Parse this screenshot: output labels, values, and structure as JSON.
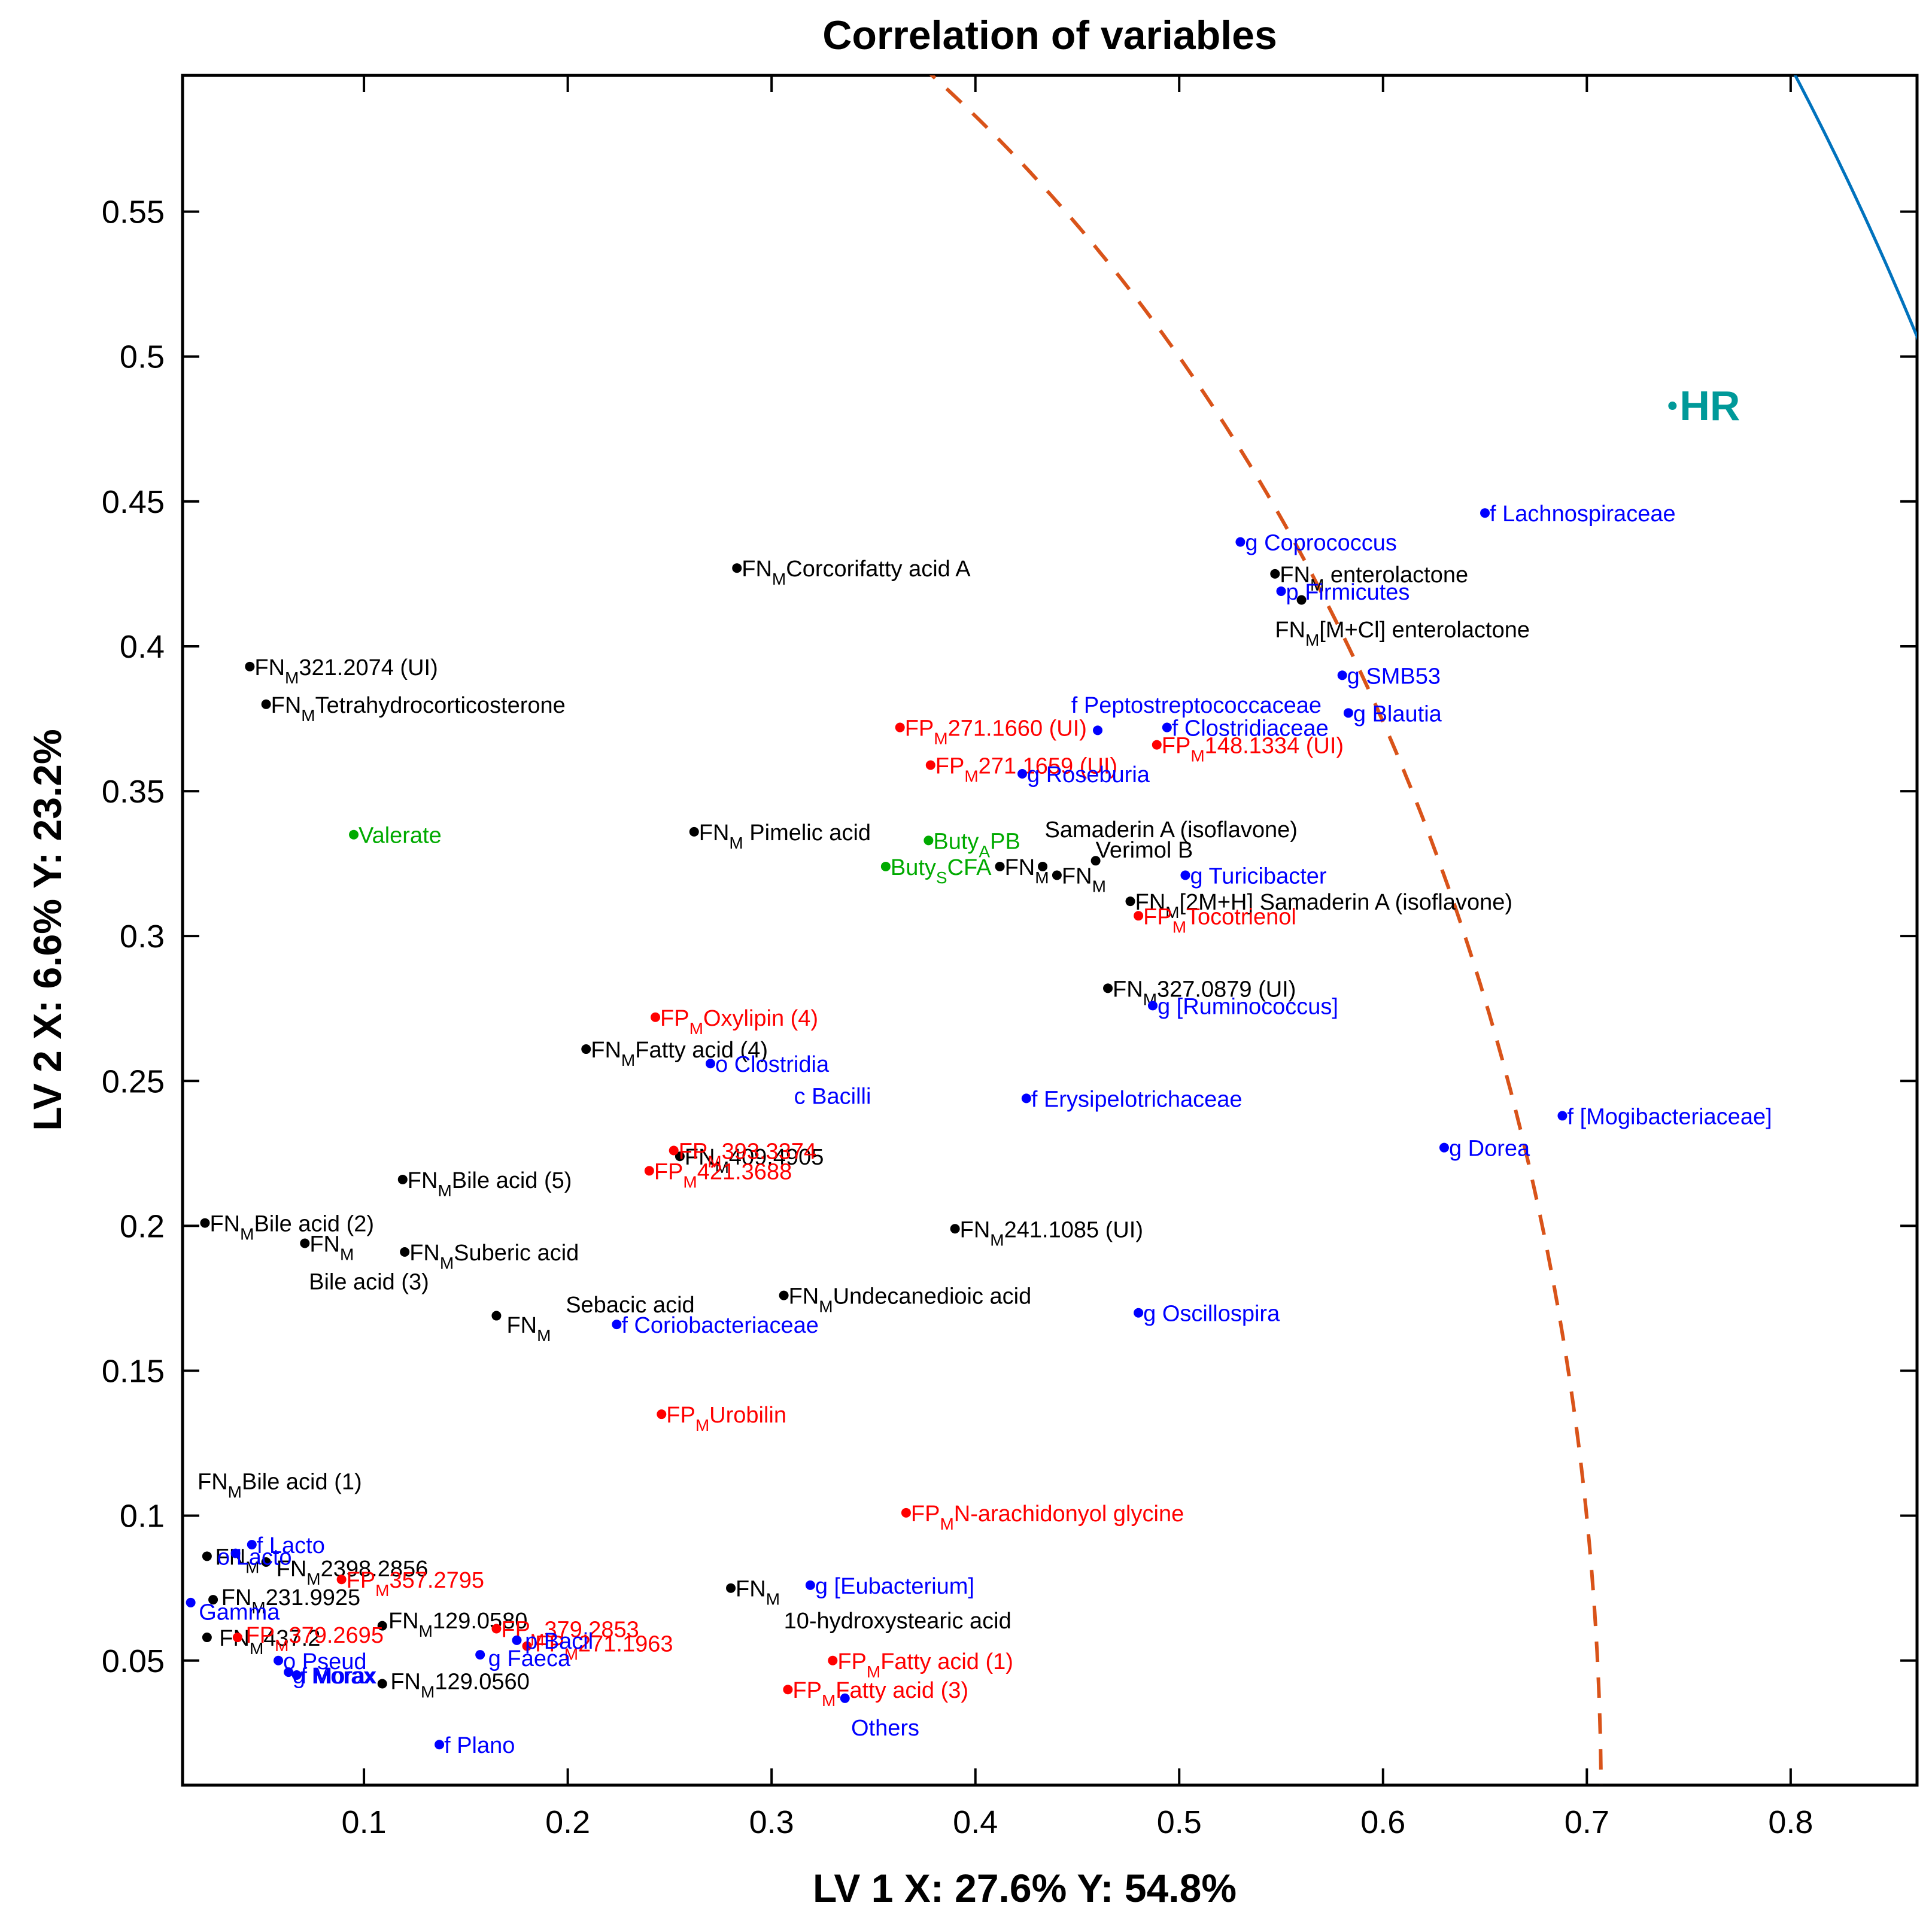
{
  "chart_data": {
    "type": "scatter",
    "title": "Correlation of variables",
    "xlabel": "LV 1 X: 27.6% Y: 54.8%",
    "ylabel": "LV 2 X: 6.6% Y: 23.2%",
    "xlim": [
      0.011,
      0.862
    ],
    "ylim": [
      0.007,
      0.597
    ],
    "xticks": [
      0.1,
      0.2,
      0.3,
      0.4,
      0.5,
      0.6,
      0.7,
      0.8
    ],
    "xtick_labels": [
      "0.1",
      "0.2",
      "0.3",
      "0.4",
      "0.5",
      "0.6",
      "0.7",
      "0.8"
    ],
    "yticks": [
      0.05,
      0.1,
      0.15,
      0.2,
      0.25,
      0.3,
      0.35,
      0.4,
      0.45,
      0.5,
      0.55
    ],
    "ytick_labels": [
      "0.05",
      "0.1",
      "0.15",
      "0.2",
      "0.25",
      "0.3",
      "0.35",
      "0.4",
      "0.45",
      "0.5",
      "0.55"
    ],
    "grid": false,
    "colors": {
      "FN": "#000000",
      "FP": "#ff0000",
      "taxa": "#0000ff",
      "scfa": "#00aa00",
      "HR": "#009999",
      "circle_inner": "#d95319",
      "circle_outer": "#0072bd"
    },
    "circles": [
      {
        "name": "inner",
        "radius": 0.707,
        "style": "dashed"
      },
      {
        "name": "outer",
        "radius": 1.0,
        "style": "solid"
      }
    ],
    "points": [
      {
        "x": 0.742,
        "y": 0.483,
        "group": "HR",
        "label": "HR"
      },
      {
        "x": 0.283,
        "y": 0.427,
        "group": "FN",
        "label": "FN",
        "sub": "M",
        "suffix": "Corcorifatty acid A"
      },
      {
        "x": 0.044,
        "y": 0.393,
        "group": "FN",
        "label": "FN",
        "sub": "M",
        "suffix": "321.2074 (UI)"
      },
      {
        "x": 0.052,
        "y": 0.38,
        "group": "FN",
        "label": "FN",
        "sub": "M",
        "suffix": "Tetrahydrocorticosterone"
      },
      {
        "x": 0.547,
        "y": 0.425,
        "group": "FN",
        "label": "FN",
        "sub": "M",
        "suffix": " enterolactone"
      },
      {
        "x": 0.56,
        "y": 0.416,
        "group": "FN",
        "label": "FN",
        "sub": "M",
        "suffix": "[M+Cl] enterolactone",
        "label_at": [
          0.547,
          0.406
        ]
      },
      {
        "x": 0.262,
        "y": 0.336,
        "group": "FN",
        "label": "FN",
        "sub": "M",
        "suffix": " Pimelic acid"
      },
      {
        "x": 0.44,
        "y": 0.321,
        "group": "FN",
        "label": "FN",
        "sub": "M",
        "suffix": ""
      },
      {
        "x": 0.433,
        "y": 0.324,
        "group": "FN",
        "label": "Samaderin A (isoflavone)",
        "label_at": [
          0.434,
          0.337
        ]
      },
      {
        "x": 0.412,
        "y": 0.324,
        "group": "FN",
        "label": "FN",
        "sub": "M",
        "suffix": ""
      },
      {
        "x": 0.459,
        "y": 0.326,
        "group": "FN",
        "label": "Verimol B",
        "label_at": [
          0.459,
          0.33
        ]
      },
      {
        "x": 0.476,
        "y": 0.312,
        "group": "FN",
        "label": "FN",
        "sub": "M",
        "suffix": "[2M+H] Samaderin A (isoflavone)"
      },
      {
        "x": 0.465,
        "y": 0.282,
        "group": "FN",
        "label": "FN",
        "sub": "M",
        "suffix": "327.0879 (UI)"
      },
      {
        "x": 0.209,
        "y": 0.261,
        "group": "FN",
        "label": "FN",
        "sub": "M",
        "suffix": "Fatty acid (4)"
      },
      {
        "x": 0.119,
        "y": 0.216,
        "group": "FN",
        "label": "FN",
        "sub": "M",
        "suffix": "Bile acid (5)"
      },
      {
        "x": 0.255,
        "y": 0.224,
        "group": "FN",
        "label": "FN",
        "sub": "M",
        "suffix": "409.4905"
      },
      {
        "x": 0.022,
        "y": 0.201,
        "group": "FN",
        "label": "FN",
        "sub": "M",
        "suffix": "Bile acid (2)"
      },
      {
        "x": 0.071,
        "y": 0.194,
        "group": "FN",
        "label": "FN",
        "sub": "M",
        "suffix": ""
      },
      {
        "x": 0.071,
        "y": 0.194,
        "group": "FN",
        "label": "Bile acid (3)",
        "label_at": [
          0.073,
          0.181
        ],
        "no_marker": true
      },
      {
        "x": 0.12,
        "y": 0.191,
        "group": "FN",
        "label": "FN",
        "sub": "M",
        "suffix": "Suberic acid"
      },
      {
        "x": 0.39,
        "y": 0.199,
        "group": "FN",
        "label": "FN",
        "sub": "M",
        "suffix": "241.1085 (UI)"
      },
      {
        "x": 0.306,
        "y": 0.176,
        "group": "FN",
        "label": "FN",
        "sub": "M",
        "suffix": "Undecanedioic acid"
      },
      {
        "x": 0.165,
        "y": 0.169,
        "group": "FN",
        "label": "FN",
        "sub": "M",
        "suffix": "",
        "label_at": [
          0.17,
          0.166
        ]
      },
      {
        "x": 0.165,
        "y": 0.169,
        "group": "FN",
        "label": "Sebacic acid",
        "label_at": [
          0.199,
          0.173
        ],
        "no_marker": true
      },
      {
        "x": 0.016,
        "y": 0.112,
        "group": "FN",
        "label": "FN",
        "sub": "M",
        "suffix": "Bile acid (1)",
        "no_marker": true
      },
      {
        "x": 0.023,
        "y": 0.086,
        "group": "FN",
        "label": "FN",
        "sub": "M",
        "suffix": "",
        "label_at": [
          0.027,
          0.086
        ]
      },
      {
        "x": 0.052,
        "y": 0.084,
        "group": "FN",
        "label": "FN",
        "sub": "M",
        "suffix": "2398.2856",
        "label_at": [
          0.057,
          0.082
        ]
      },
      {
        "x": 0.026,
        "y": 0.071,
        "group": "FN",
        "label": "FN",
        "sub": "M",
        "suffix": "231.9925",
        "label_at": [
          0.03,
          0.072
        ]
      },
      {
        "x": 0.023,
        "y": 0.058,
        "group": "FN",
        "label": "FN",
        "sub": "M",
        "suffix": "437.2",
        "label_at": [
          0.029,
          0.058
        ]
      },
      {
        "x": 0.109,
        "y": 0.062,
        "group": "FN",
        "label": "FN",
        "sub": "M",
        "suffix": "129.0580",
        "label_at": [
          0.112,
          0.064
        ]
      },
      {
        "x": 0.109,
        "y": 0.042,
        "group": "FN",
        "label": "FN",
        "sub": "M",
        "suffix": "129.0560",
        "label_at": [
          0.113,
          0.043
        ]
      },
      {
        "x": 0.28,
        "y": 0.075,
        "group": "FN",
        "label": "FN",
        "sub": "M",
        "suffix": ""
      },
      {
        "x": 0.28,
        "y": 0.075,
        "group": "FN",
        "label": "10-hydroxystearic acid",
        "label_at": [
          0.306,
          0.064
        ],
        "no_marker": true
      },
      {
        "x": 0.363,
        "y": 0.372,
        "group": "FP",
        "label": "FP",
        "sub": "M",
        "suffix": "271.1660 (UI)"
      },
      {
        "x": 0.378,
        "y": 0.359,
        "group": "FP",
        "label": "FP",
        "sub": "M",
        "suffix": "271.1659 (UI)"
      },
      {
        "x": 0.489,
        "y": 0.366,
        "group": "FP",
        "label": "FP",
        "sub": "M",
        "suffix": "148.1334 (UI)"
      },
      {
        "x": 0.48,
        "y": 0.307,
        "group": "FP",
        "label": "FP",
        "sub": "M",
        "suffix": "Tocotrienol"
      },
      {
        "x": 0.243,
        "y": 0.272,
        "group": "FP",
        "label": "FP",
        "sub": "M",
        "suffix": "Oxylipin (4)"
      },
      {
        "x": 0.252,
        "y": 0.226,
        "group": "FP",
        "label": "FP",
        "sub": "M",
        "suffix": "393.3374"
      },
      {
        "x": 0.24,
        "y": 0.219,
        "group": "FP",
        "label": "FP",
        "sub": "M",
        "suffix": "421.3688"
      },
      {
        "x": 0.246,
        "y": 0.135,
        "group": "FP",
        "label": "FP",
        "sub": "M",
        "suffix": "Urobilin"
      },
      {
        "x": 0.366,
        "y": 0.101,
        "group": "FP",
        "label": "FP",
        "sub": "M",
        "suffix": "N-arachidonyol glycine"
      },
      {
        "x": 0.089,
        "y": 0.078,
        "group": "FP",
        "label": "FP",
        "sub": "M",
        "suffix": "357.2795"
      },
      {
        "x": 0.038,
        "y": 0.058,
        "group": "FP",
        "label": "FP",
        "sub": "M",
        "suffix": "379.2695",
        "label_at": [
          0.042,
          0.059
        ]
      },
      {
        "x": 0.165,
        "y": 0.061,
        "group": "FP",
        "label": "FP",
        "sub": "M",
        "suffix": "379.2853"
      },
      {
        "x": 0.18,
        "y": 0.055,
        "group": "FP",
        "label": "FP",
        "sub": "M",
        "suffix": "271.1963",
        "label_at": [
          0.184,
          0.056
        ]
      },
      {
        "x": 0.33,
        "y": 0.05,
        "group": "FP",
        "label": "FP",
        "sub": "M",
        "suffix": "Fatty acid (1)"
      },
      {
        "x": 0.308,
        "y": 0.04,
        "group": "FP",
        "label": "FP",
        "sub": "M",
        "suffix": "Fatty acid (3)"
      },
      {
        "x": 0.65,
        "y": 0.446,
        "group": "taxa",
        "label": "f Lachnospiraceae"
      },
      {
        "x": 0.53,
        "y": 0.436,
        "group": "taxa",
        "label": "g Coprococcus"
      },
      {
        "x": 0.55,
        "y": 0.419,
        "group": "taxa",
        "label": "p Firmicutes"
      },
      {
        "x": 0.58,
        "y": 0.39,
        "group": "taxa",
        "label": "g SMB53"
      },
      {
        "x": 0.46,
        "y": 0.371,
        "group": "taxa",
        "label": "f Peptostreptococcaceae",
        "label_at": [
          0.447,
          0.38
        ]
      },
      {
        "x": 0.494,
        "y": 0.372,
        "group": "taxa",
        "label": "f Clostridiaceae"
      },
      {
        "x": 0.583,
        "y": 0.377,
        "group": "taxa",
        "label": "g Blautia"
      },
      {
        "x": 0.423,
        "y": 0.356,
        "group": "taxa",
        "label": "g Roseburia"
      },
      {
        "x": 0.503,
        "y": 0.321,
        "group": "taxa",
        "label": "g Turicibacter"
      },
      {
        "x": 0.487,
        "y": 0.276,
        "group": "taxa",
        "label": "g [Ruminococcus]"
      },
      {
        "x": 0.27,
        "y": 0.256,
        "group": "taxa",
        "label": "o Clostridia"
      },
      {
        "x": 0.27,
        "y": 0.256,
        "group": "taxa",
        "label": "c Bacilli",
        "label_at": [
          0.311,
          0.245
        ],
        "no_marker": true
      },
      {
        "x": 0.425,
        "y": 0.244,
        "group": "taxa",
        "label": "f Erysipelotrichaceae"
      },
      {
        "x": 0.688,
        "y": 0.238,
        "group": "taxa",
        "label": "f [Mogibacteriaceae]"
      },
      {
        "x": 0.63,
        "y": 0.227,
        "group": "taxa",
        "label": "g Dorea"
      },
      {
        "x": 0.48,
        "y": 0.17,
        "group": "taxa",
        "label": "g Oscillospira"
      },
      {
        "x": 0.224,
        "y": 0.166,
        "group": "taxa",
        "label": "f Coriobacteriaceae"
      },
      {
        "x": 0.319,
        "y": 0.076,
        "group": "taxa",
        "label": "g [Eubacterium]"
      },
      {
        "x": 0.045,
        "y": 0.09,
        "group": "taxa",
        "label": "f Lacto"
      },
      {
        "x": 0.037,
        "y": 0.087,
        "group": "taxa",
        "label": "o Lacto",
        "label_at": [
          0.028,
          0.086
        ]
      },
      {
        "x": 0.015,
        "y": 0.07,
        "group": "taxa",
        "label": "Gamma",
        "label_at": [
          0.019,
          0.067
        ]
      },
      {
        "x": 0.058,
        "y": 0.05,
        "group": "taxa",
        "label": "o Pseud"
      },
      {
        "x": 0.063,
        "y": 0.046,
        "group": "taxa",
        "label": "g Morax",
        "label_at": [
          0.065,
          0.045
        ]
      },
      {
        "x": 0.067,
        "y": 0.045,
        "group": "taxa",
        "label": "f Morax",
        "label_at": [
          0.069,
          0.045
        ]
      },
      {
        "x": 0.157,
        "y": 0.052,
        "group": "taxa",
        "label": "g Faeca",
        "label_at": [
          0.161,
          0.051
        ]
      },
      {
        "x": 0.175,
        "y": 0.057,
        "group": "taxa",
        "label": "p Bacil",
        "label_at": [
          0.179,
          0.057
        ]
      },
      {
        "x": 0.137,
        "y": 0.021,
        "group": "taxa",
        "label": "f Plano"
      },
      {
        "x": 0.336,
        "y": 0.037,
        "group": "taxa",
        "label": "Others",
        "label_at": [
          0.339,
          0.027
        ]
      },
      {
        "x": 0.095,
        "y": 0.335,
        "group": "scfa",
        "label": "Valerate"
      },
      {
        "x": 0.377,
        "y": 0.333,
        "group": "scfa",
        "label": "Buty",
        "sub": "A",
        "suffix": "PB"
      },
      {
        "x": 0.356,
        "y": 0.324,
        "group": "scfa",
        "label": "Buty",
        "sub": "S",
        "suffix": "CFA"
      }
    ]
  }
}
